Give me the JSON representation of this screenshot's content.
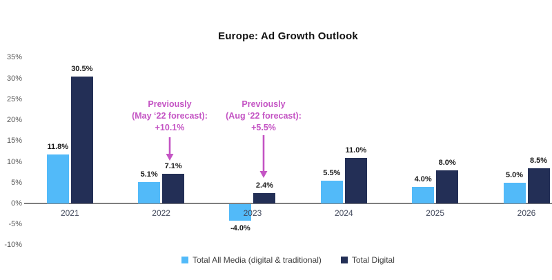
{
  "title": "Europe: Ad Growth Outlook",
  "chart_data": {
    "type": "bar",
    "categories": [
      "2021",
      "2022",
      "2023",
      "2024",
      "2025",
      "2026"
    ],
    "series": [
      {
        "name": "Total All Media (digital & traditional)",
        "color": "#52BAF9",
        "values": [
          11.8,
          5.1,
          -4.0,
          5.5,
          4.0,
          5.0
        ],
        "data_labels": [
          "11.8%",
          "5.1%",
          "-4.0%",
          "5.5%",
          "4.0%",
          "5.0%"
        ]
      },
      {
        "name": "Total Digital",
        "color": "#232F56",
        "values": [
          30.5,
          7.1,
          2.4,
          11.0,
          8.0,
          8.5
        ],
        "data_labels": [
          "30.5%",
          "7.1%",
          "2.4%",
          "11.0%",
          "8.0%",
          "8.5%"
        ]
      }
    ],
    "ylim": [
      -10,
      35
    ],
    "ytick_step": 5,
    "ytick_values": [
      35,
      30,
      25,
      20,
      15,
      10,
      5,
      0,
      -5,
      -10
    ],
    "ytick_labels": [
      "35%",
      "30%",
      "25%",
      "20%",
      "15%",
      "10%",
      "5%",
      "0%",
      "-5%",
      "-10%"
    ],
    "grid": false,
    "axis_color": "#7F7F7F",
    "legend_position": "bottom",
    "annotations": [
      {
        "lines": [
          "Previously",
          "(May ‘22 forecast):",
          "+10.1%"
        ],
        "color": "#C454C4",
        "arrow_to_category": "2022"
      },
      {
        "lines": [
          "Previously",
          "(Aug ‘22 forecast):",
          "+5.5%"
        ],
        "color": "#C454C4",
        "arrow_to_category": "2023"
      }
    ]
  }
}
